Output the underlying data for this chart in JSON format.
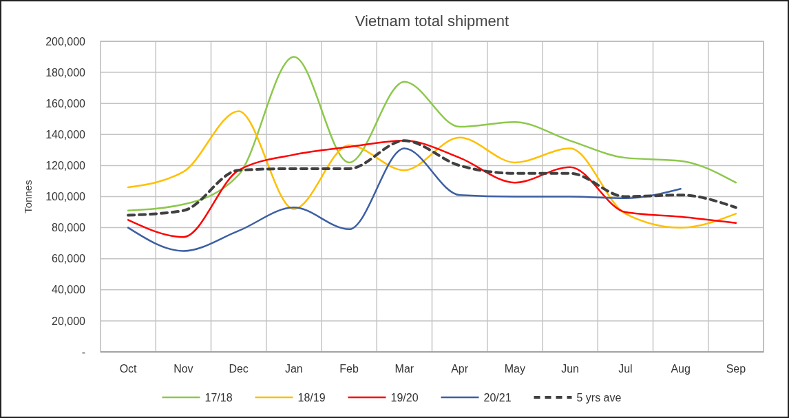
{
  "chart_data": {
    "type": "line",
    "title": "Vietnam total shipment",
    "ylabel": "Tonnes",
    "categories": [
      "Oct",
      "Nov",
      "Dec",
      "Jan",
      "Feb",
      "Mar",
      "Apr",
      "May",
      "Jun",
      "Jul",
      "Aug",
      "Sep"
    ],
    "series": [
      {
        "name": "17/18",
        "color": "#8cc84b",
        "values": [
          91000,
          95000,
          114000,
          190000,
          122000,
          174000,
          145000,
          148000,
          136000,
          125000,
          123000,
          109000
        ]
      },
      {
        "name": "18/19",
        "color": "#ffbf00",
        "values": [
          106000,
          116000,
          155000,
          92000,
          133000,
          117000,
          138000,
          122000,
          131000,
          89000,
          80000,
          89000
        ]
      },
      {
        "name": "19/20",
        "color": "#ff0000",
        "values": [
          85000,
          74000,
          117000,
          127000,
          132000,
          136000,
          125000,
          109000,
          119000,
          90000,
          87000,
          83000
        ]
      },
      {
        "name": "20/21",
        "color": "#3d5fa3",
        "values": [
          80000,
          65000,
          78000,
          93000,
          79000,
          131000,
          101000,
          100000,
          100000,
          99000,
          105000,
          null
        ]
      },
      {
        "name": "5 yrs ave",
        "color": "#404040",
        "line_style": "dashed",
        "values": [
          88000,
          91000,
          117000,
          118000,
          118000,
          136000,
          120000,
          115000,
          115000,
          100000,
          101000,
          93000
        ]
      }
    ],
    "ylim": [
      0,
      200000
    ],
    "yticks": [
      {
        "value": 0,
        "label": "-"
      },
      {
        "value": 20000,
        "label": "20,000"
      },
      {
        "value": 40000,
        "label": "40,000"
      },
      {
        "value": 60000,
        "label": "60,000"
      },
      {
        "value": 80000,
        "label": "80,000"
      },
      {
        "value": 100000,
        "label": "100,000"
      },
      {
        "value": 120000,
        "label": "120,000"
      },
      {
        "value": 140000,
        "label": "140,000"
      },
      {
        "value": 160000,
        "label": "160,000"
      },
      {
        "value": 180000,
        "label": "180,000"
      },
      {
        "value": 200000,
        "label": "200,000"
      }
    ],
    "grid": true,
    "legend": "bottom"
  }
}
